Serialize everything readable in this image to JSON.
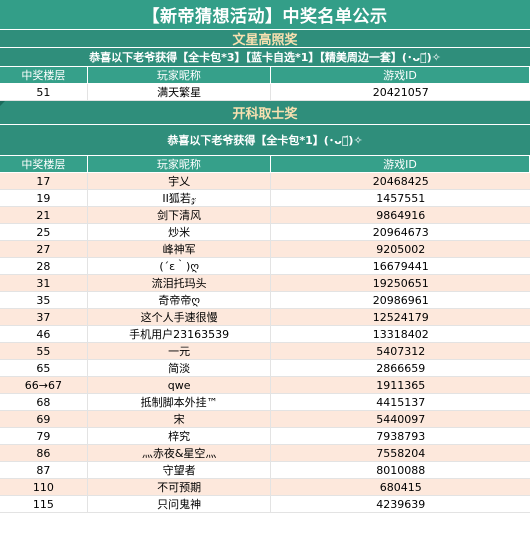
{
  "title": "【新帝猜想活动】中奖名单公示",
  "sections": [
    {
      "title": "文星高照奖",
      "notice": "恭喜以下老爷获得【全卡包*3】【蓝卡自选*1】【精美周边一套】(･ᴗ･᷄)✧",
      "columns": [
        "中奖楼层",
        "玩家昵称",
        "游戏ID"
      ],
      "rows": [
        {
          "floor": "51",
          "nickname": "满天繁星",
          "game_id": "20421057"
        }
      ]
    },
    {
      "title": "开科取士奖",
      "notice": "恭喜以下老爷获得【全卡包*1】(･ᴗ･᷄)✧",
      "columns": [
        "中奖楼层",
        "玩家昵称",
        "游戏ID"
      ],
      "rows": [
        {
          "floor": "17",
          "nickname": "宇乂",
          "game_id": "20468425"
        },
        {
          "floor": "19",
          "nickname": "ΙΙ狐若𝓏",
          "game_id": "1457551"
        },
        {
          "floor": "21",
          "nickname": "剑下清风",
          "game_id": "9864916"
        },
        {
          "floor": "25",
          "nickname": "炒米",
          "game_id": "20964673"
        },
        {
          "floor": "27",
          "nickname": "峰神军",
          "game_id": "9205002"
        },
        {
          "floor": "28",
          "nickname": "(´ε｀)ღ",
          "game_id": "16679441"
        },
        {
          "floor": "31",
          "nickname": "流泪托玛头",
          "game_id": "19250651"
        },
        {
          "floor": "35",
          "nickname": "奇帝帝ღ",
          "game_id": "20986961"
        },
        {
          "floor": "37",
          "nickname": "这个人手速很慢",
          "game_id": "12524179"
        },
        {
          "floor": "46",
          "nickname": "手机用户23163539",
          "game_id": "13318402"
        },
        {
          "floor": "55",
          "nickname": "一元",
          "game_id": "5407312"
        },
        {
          "floor": "65",
          "nickname": "简淡",
          "game_id": "2866659"
        },
        {
          "floor": "66→67",
          "nickname": "qwe",
          "game_id": "1911365"
        },
        {
          "floor": "68",
          "nickname": "抵制脚本外挂™",
          "game_id": "4415137"
        },
        {
          "floor": "69",
          "nickname": "宋",
          "game_id": "5440097"
        },
        {
          "floor": "79",
          "nickname": "梓究",
          "game_id": "7938793"
        },
        {
          "floor": "86",
          "nickname": "灬赤夜&星空灬",
          "game_id": "7558204"
        },
        {
          "floor": "87",
          "nickname": "守望者",
          "game_id": "8010088"
        },
        {
          "floor": "110",
          "nickname": "不可预期",
          "game_id": "680415"
        },
        {
          "floor": "115",
          "nickname": "只问鬼神",
          "game_id": "4239639"
        }
      ]
    }
  ],
  "colors": {
    "banner": "#339e88",
    "section_bg": "#2f8e7b",
    "section_title_text": "#f8e0b0",
    "row_peach": "#fde8dc",
    "row_white": "#ffffff"
  }
}
